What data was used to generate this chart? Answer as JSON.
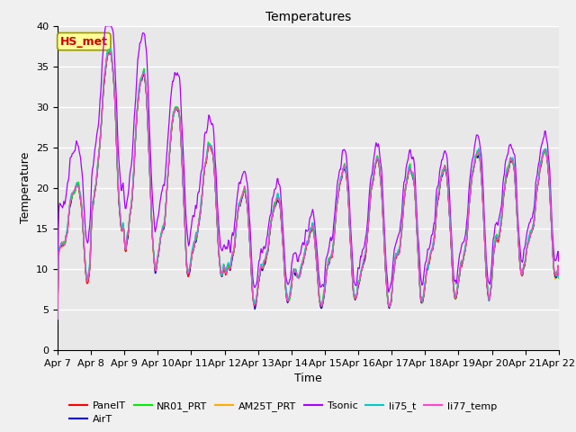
{
  "title": "Temperatures",
  "xlabel": "Time",
  "ylabel": "Temperature",
  "ylim": [
    0,
    40
  ],
  "xlim": [
    0,
    15
  ],
  "yticks": [
    0,
    5,
    10,
    15,
    20,
    25,
    30,
    35,
    40
  ],
  "xtick_labels": [
    "Apr 7",
    "Apr 8",
    "Apr 9",
    "Apr 10",
    "Apr 11",
    "Apr 12",
    "Apr 13",
    "Apr 14",
    "Apr 15",
    "Apr 16",
    "Apr 17",
    "Apr 18",
    "Apr 19",
    "Apr 20",
    "Apr 21",
    "Apr 22"
  ],
  "series_colors": {
    "PanelT": "#ff0000",
    "AirT": "#0000cc",
    "NR01_PRT": "#00ee00",
    "AM25T_PRT": "#ffaa00",
    "Tsonic": "#aa00ff",
    "li75_t": "#00cccc",
    "li77_temp": "#ff44cc"
  },
  "annotation_text": "HS_met",
  "annotation_color": "#cc0000",
  "annotation_bg": "#ffff99",
  "background_color": "#e8e8e8",
  "grid_color": "#ffffff",
  "fig_bg": "#f0f0f0",
  "title_fontsize": 10,
  "label_fontsize": 9,
  "tick_fontsize": 8,
  "legend_fontsize": 8
}
